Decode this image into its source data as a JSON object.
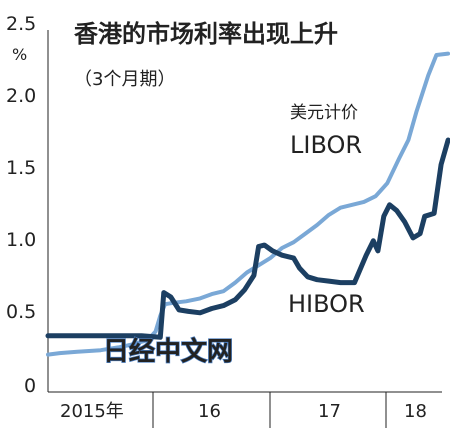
{
  "chart_data": {
    "type": "line",
    "title": "香港的市场利率出现上升",
    "subtitle": "（3个月期）",
    "yunit": "%",
    "ylim": [
      0,
      2.5
    ],
    "yticks": [
      "2.5",
      "2.0",
      "1.5",
      "1.0",
      "0.5",
      "0"
    ],
    "xticks": [
      "2015年",
      "16",
      "17",
      "18"
    ],
    "grid": false,
    "series": [
      {
        "name_lines": [
          "美元计价",
          "LIBOR"
        ],
        "color": "#7aa8d6",
        "points": [
          [
            2015.0,
            0.26
          ],
          [
            2015.1,
            0.27
          ],
          [
            2015.25,
            0.28
          ],
          [
            2015.45,
            0.29
          ],
          [
            2015.6,
            0.31
          ],
          [
            2015.72,
            0.33
          ],
          [
            2015.85,
            0.36
          ],
          [
            2015.92,
            0.42
          ],
          [
            2015.96,
            0.53
          ],
          [
            2016.0,
            0.61
          ],
          [
            2016.08,
            0.62
          ],
          [
            2016.18,
            0.63
          ],
          [
            2016.3,
            0.65
          ],
          [
            2016.4,
            0.68
          ],
          [
            2016.5,
            0.7
          ],
          [
            2016.6,
            0.76
          ],
          [
            2016.7,
            0.83
          ],
          [
            2016.8,
            0.88
          ],
          [
            2016.9,
            0.93
          ],
          [
            2017.0,
            1.0
          ],
          [
            2017.1,
            1.04
          ],
          [
            2017.2,
            1.1
          ],
          [
            2017.3,
            1.16
          ],
          [
            2017.4,
            1.23
          ],
          [
            2017.5,
            1.28
          ],
          [
            2017.6,
            1.3
          ],
          [
            2017.7,
            1.32
          ],
          [
            2017.8,
            1.36
          ],
          [
            2017.9,
            1.45
          ],
          [
            2018.0,
            1.62
          ],
          [
            2018.08,
            1.75
          ],
          [
            2018.15,
            1.95
          ],
          [
            2018.25,
            2.2
          ],
          [
            2018.32,
            2.34
          ],
          [
            2018.42,
            2.35
          ]
        ]
      },
      {
        "name_lines": [
          "HIBOR"
        ],
        "color": "#1c3f62",
        "points": [
          [
            2015.0,
            0.39
          ],
          [
            2015.2,
            0.39
          ],
          [
            2015.45,
            0.39
          ],
          [
            2015.65,
            0.39
          ],
          [
            2015.8,
            0.39
          ],
          [
            2015.96,
            0.38
          ],
          [
            2015.99,
            0.69
          ],
          [
            2016.05,
            0.66
          ],
          [
            2016.12,
            0.57
          ],
          [
            2016.2,
            0.56
          ],
          [
            2016.3,
            0.55
          ],
          [
            2016.4,
            0.58
          ],
          [
            2016.5,
            0.6
          ],
          [
            2016.6,
            0.64
          ],
          [
            2016.68,
            0.71
          ],
          [
            2016.76,
            0.81
          ],
          [
            2016.8,
            1.01
          ],
          [
            2016.85,
            1.02
          ],
          [
            2016.92,
            0.98
          ],
          [
            2017.0,
            0.95
          ],
          [
            2017.1,
            0.93
          ],
          [
            2017.15,
            0.86
          ],
          [
            2017.22,
            0.8
          ],
          [
            2017.3,
            0.78
          ],
          [
            2017.4,
            0.77
          ],
          [
            2017.5,
            0.76
          ],
          [
            2017.62,
            0.76
          ],
          [
            2017.72,
            0.95
          ],
          [
            2017.78,
            1.05
          ],
          [
            2017.82,
            0.98
          ],
          [
            2017.87,
            1.22
          ],
          [
            2017.92,
            1.3
          ],
          [
            2017.98,
            1.26
          ],
          [
            2018.05,
            1.18
          ],
          [
            2018.12,
            1.07
          ],
          [
            2018.18,
            1.1
          ],
          [
            2018.22,
            1.22
          ],
          [
            2018.3,
            1.24
          ],
          [
            2018.36,
            1.58
          ],
          [
            2018.42,
            1.75
          ]
        ]
      }
    ]
  },
  "watermark": "日经中文网"
}
